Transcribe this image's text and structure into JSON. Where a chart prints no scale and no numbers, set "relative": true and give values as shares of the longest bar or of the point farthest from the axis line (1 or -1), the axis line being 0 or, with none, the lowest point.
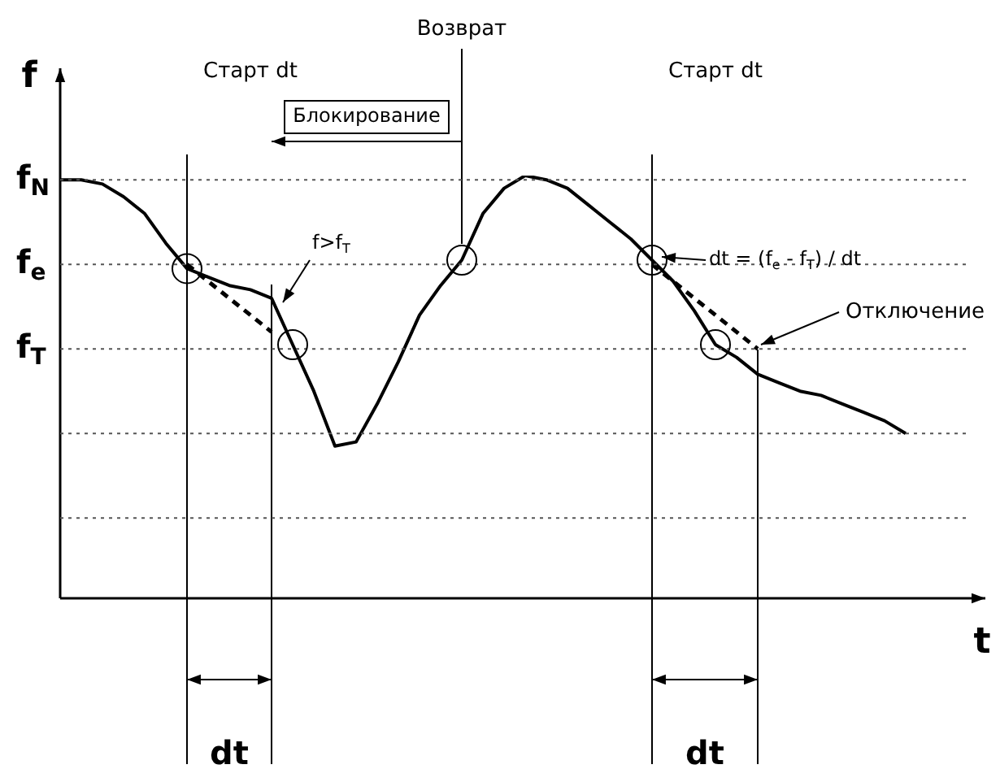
{
  "chart_data": {
    "type": "line",
    "relative": true,
    "xlabel": "t",
    "ylabel": "f",
    "legend": false,
    "grid": "x",
    "categories": [
      null,
      null,
      null,
      null,
      null,
      null,
      null,
      null,
      null,
      null,
      null,
      null,
      null,
      null,
      null,
      null,
      null,
      null,
      null,
      null,
      null,
      null,
      null,
      null,
      null,
      null,
      null,
      null,
      null,
      null,
      null,
      null,
      null,
      null,
      null,
      null,
      null,
      null,
      null,
      null,
      null,
      null,
      null,
      null
    ],
    "series": [
      {
        "type": "line",
        "color": "#000000",
        "line_style": "solid",
        "values": [
          0.99,
          0.99,
          0.98,
          0.95,
          0.91,
          0.84,
          0.78,
          0.76,
          0.74,
          0.73,
          0.71,
          0.6,
          0.49,
          0.36,
          0.37,
          0.46,
          0.56,
          0.67,
          0.74,
          0.8,
          0.91,
          0.97,
          1,
          0.99,
          0.97,
          0.93,
          0.89,
          0.85,
          0.8,
          0.75,
          0.68,
          0.6,
          0.57,
          0.53,
          0.51,
          0.49,
          0.48,
          0.46,
          0.44,
          0.42,
          0.39,
          null,
          null,
          null
        ]
      },
      {
        "type": "line",
        "color": "#000000",
        "line_style": "dashed",
        "values": [
          null,
          null,
          null,
          null,
          null,
          null,
          0.79,
          null,
          null,
          null,
          0.63,
          null,
          null,
          null,
          null,
          null,
          null,
          null,
          null,
          null,
          null,
          null,
          null,
          null,
          null,
          null,
          null,
          null,
          null,
          null,
          null,
          null,
          null,
          null,
          null,
          null,
          null,
          null,
          null,
          null,
          null,
          null,
          null,
          null
        ]
      },
      {
        "type": "line",
        "color": "#000000",
        "line_style": "dashed",
        "values": [
          null,
          null,
          null,
          null,
          null,
          null,
          null,
          null,
          null,
          null,
          null,
          null,
          null,
          null,
          null,
          null,
          null,
          null,
          null,
          null,
          null,
          null,
          null,
          null,
          null,
          null,
          null,
          null,
          0.79,
          null,
          null,
          null,
          null,
          0.59,
          null,
          null,
          null,
          null,
          null,
          null,
          null,
          null,
          null,
          null
        ]
      }
    ],
    "ref_lines": [
      {
        "axis": "y",
        "value": 0.99,
        "label": "f$_{N}$"
      },
      {
        "axis": "y",
        "value": 0.79,
        "label": "f$_{e}$"
      },
      {
        "axis": "y",
        "value": 0.59,
        "label": "f$_{T}$"
      },
      {
        "axis": "y",
        "value": 0.39
      },
      {
        "axis": "y",
        "value": 0.19
      }
    ],
    "annotations": [
      "Блокирование",
      "f>f$_{T}$",
      "dt = (f$_{e}$ - f$_{T}$) / dt",
      "Отключение",
      "dt",
      "dt",
      "Старт dt",
      "Возврат",
      "Старт dt"
    ]
  }
}
